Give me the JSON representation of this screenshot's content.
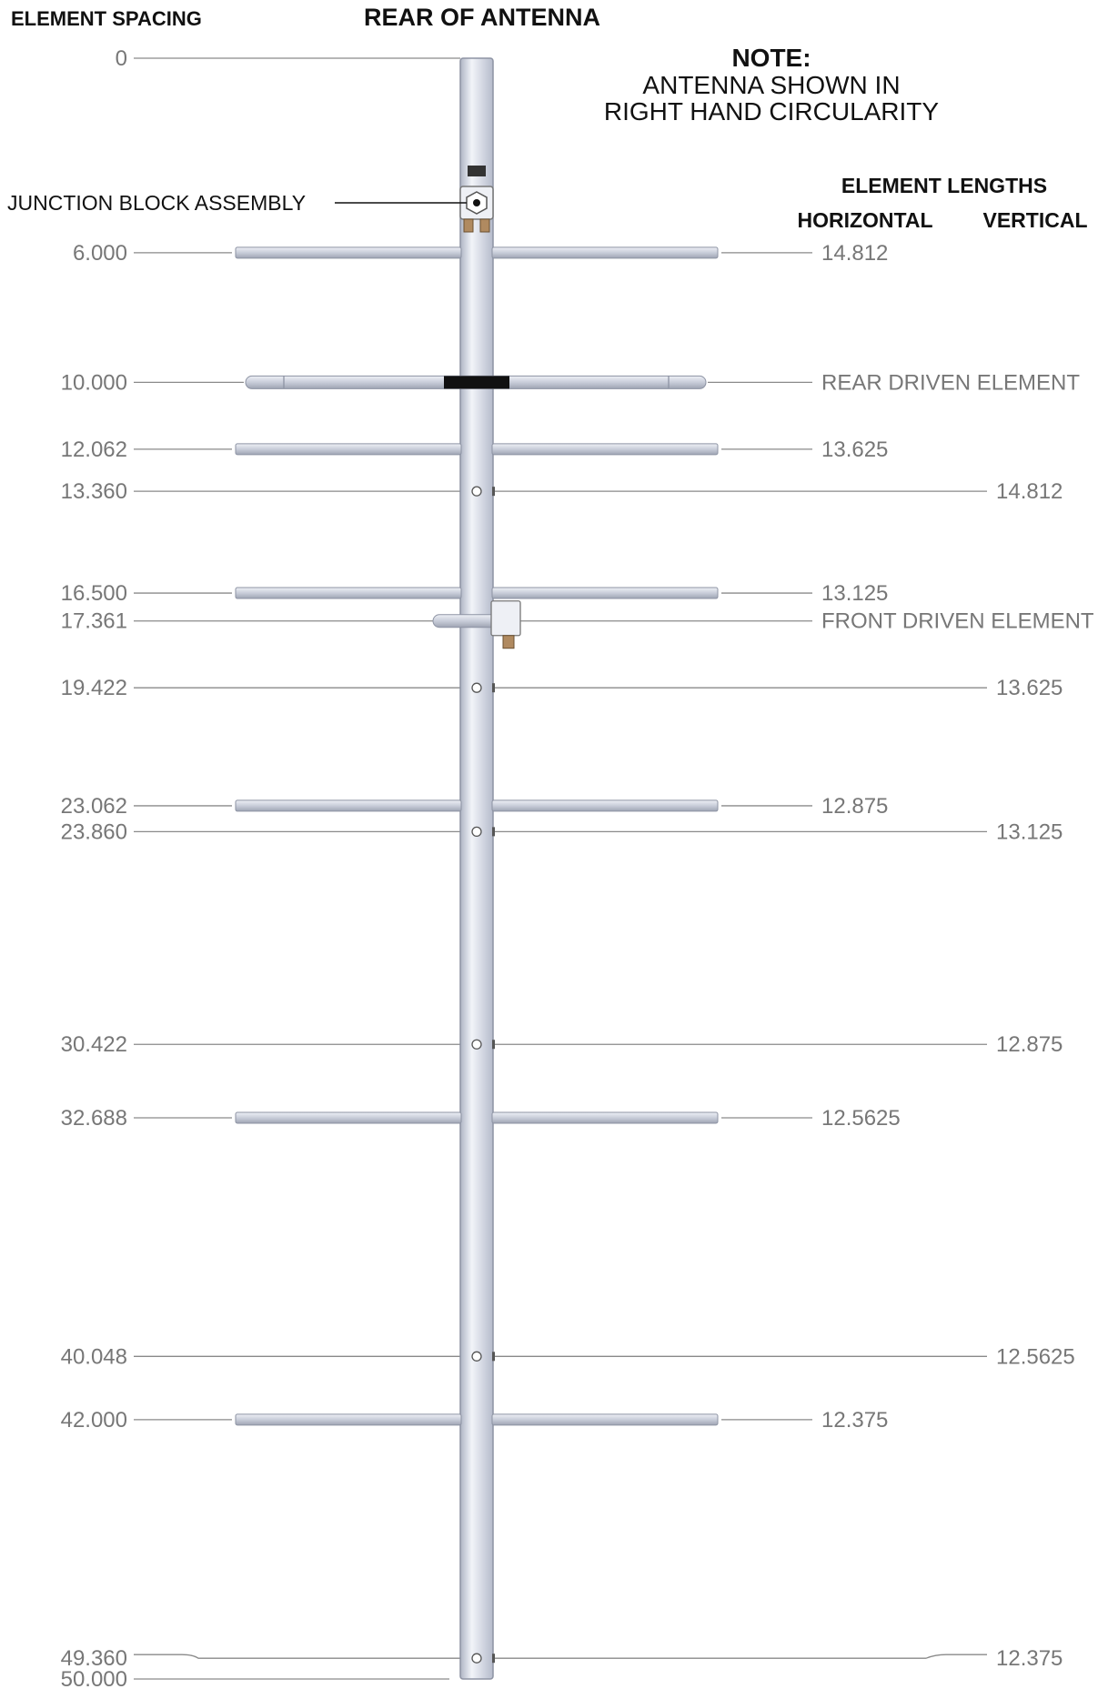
{
  "headers": {
    "element_spacing": "ELEMENT SPACING",
    "rear_of_antenna": "REAR OF ANTENNA",
    "note_title": "NOTE:",
    "note_line1": "ANTENNA SHOWN IN",
    "note_line2": "RIGHT HAND CIRCULARITY",
    "element_lengths": "ELEMENT LENGTHS",
    "horizontal": "HORIZONTAL",
    "vertical": "VERTICAL"
  },
  "callouts": {
    "junction_block": "JUNCTION BLOCK ASSEMBLY"
  },
  "spacing_zero": "0",
  "spacing_end": "50.000",
  "elements": [
    {
      "spacing": "6.000",
      "orientation": "horizontal",
      "length": "14.812"
    },
    {
      "spacing": "10.000",
      "orientation": "driven-rear",
      "length": "REAR DRIVEN ELEMENT"
    },
    {
      "spacing": "12.062",
      "orientation": "horizontal",
      "length": "13.625"
    },
    {
      "spacing": "13.360",
      "orientation": "vertical",
      "length": "14.812"
    },
    {
      "spacing": "16.500",
      "orientation": "horizontal",
      "length": "13.125"
    },
    {
      "spacing": "17.361",
      "orientation": "driven-front",
      "length": "FRONT DRIVEN ELEMENT"
    },
    {
      "spacing": "19.422",
      "orientation": "vertical",
      "length": "13.625"
    },
    {
      "spacing": "23.062",
      "orientation": "horizontal",
      "length": "12.875"
    },
    {
      "spacing": "23.860",
      "orientation": "vertical",
      "length": "13.125"
    },
    {
      "spacing": "30.422",
      "orientation": "vertical",
      "length": "12.875"
    },
    {
      "spacing": "32.688",
      "orientation": "horizontal",
      "length": "12.5625"
    },
    {
      "spacing": "40.048",
      "orientation": "vertical",
      "length": "12.5625"
    },
    {
      "spacing": "42.000",
      "orientation": "horizontal",
      "length": "12.375"
    },
    {
      "spacing": "49.360",
      "orientation": "vertical",
      "length": "12.375"
    }
  ],
  "colors": {
    "boom": "#d8dde8",
    "element_rod": "#cfd4e0",
    "leader_line": "#8a8a8a",
    "driven_band": "#111111"
  }
}
